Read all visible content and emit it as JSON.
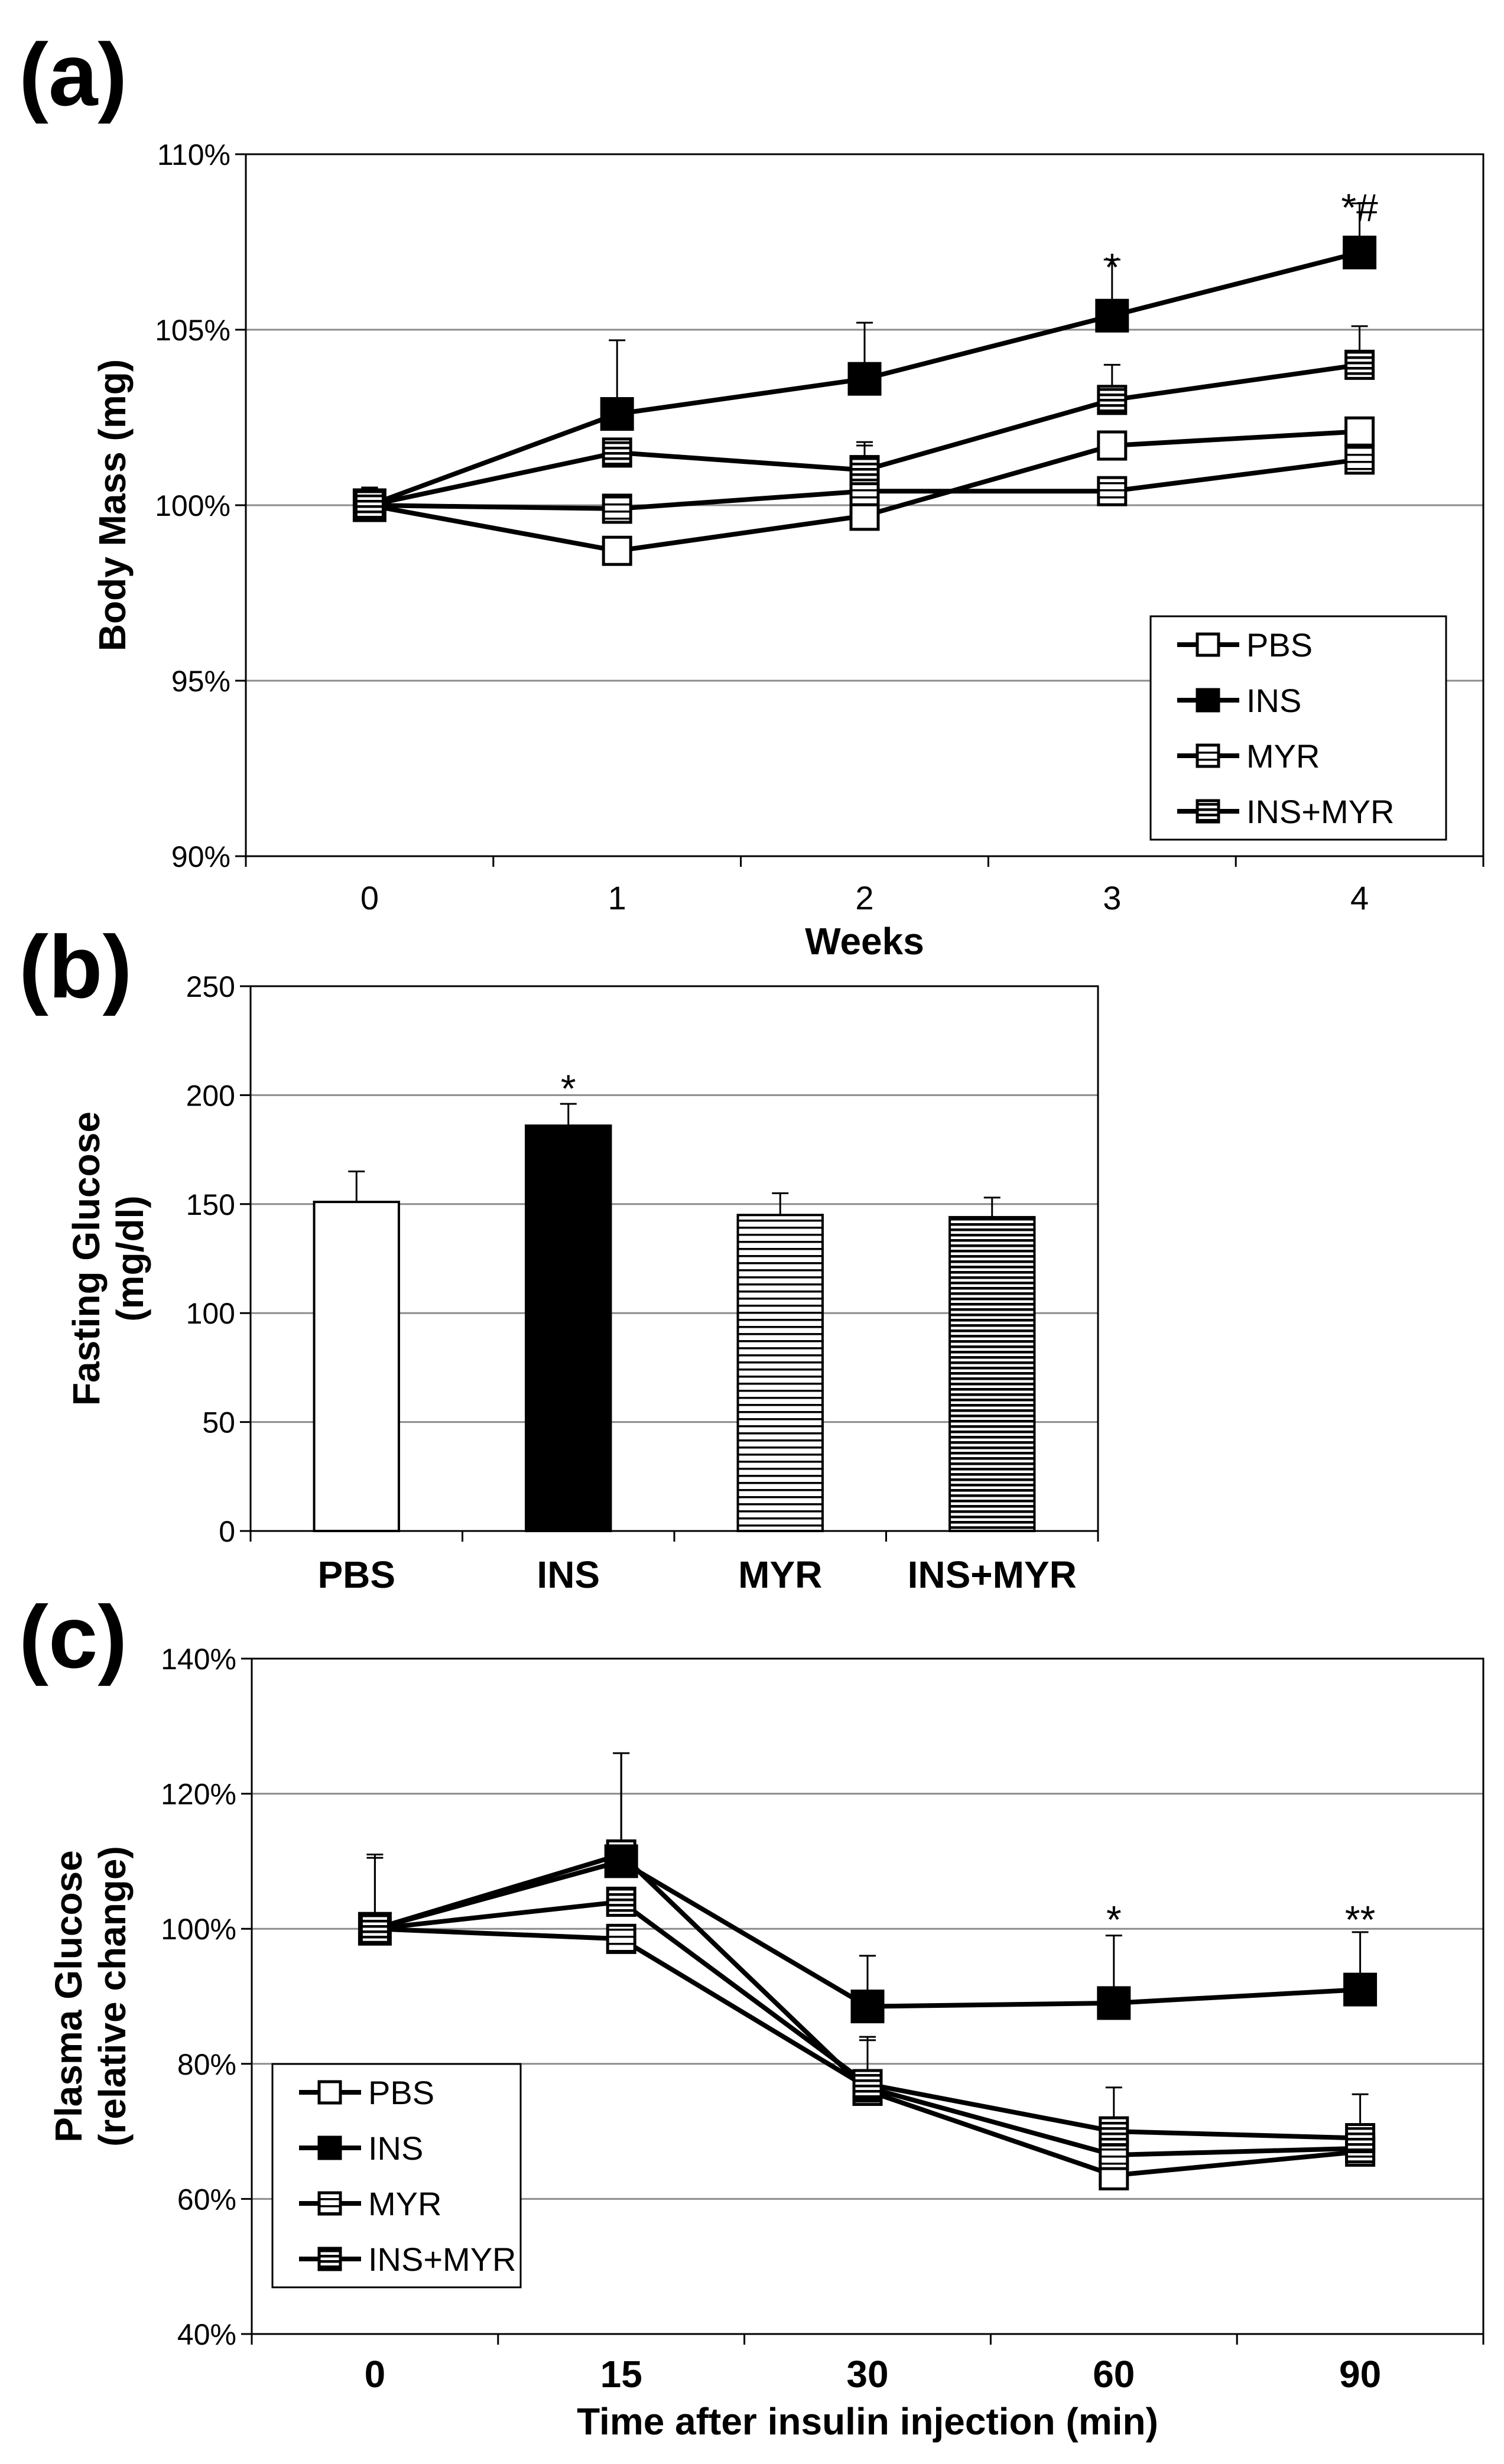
{
  "chart_data": [
    {
      "panel": "(a)",
      "type": "line",
      "xlabel": "Weeks",
      "ylabel": "Body Mass (mg)",
      "categories": [
        "0",
        "1",
        "2",
        "3",
        "4"
      ],
      "ylim": [
        90,
        110
      ],
      "yticks": [
        "90%",
        "95%",
        "100%",
        "105%",
        "110%"
      ],
      "grid": true,
      "legend_position": "bottom-right",
      "series": [
        {
          "name": "PBS",
          "marker": "open",
          "values": [
            100,
            98.7,
            99.7,
            101.7,
            102.1
          ],
          "errors": [
            0.5,
            0,
            0,
            0,
            0
          ]
        },
        {
          "name": "INS",
          "marker": "filled",
          "values": [
            100,
            102.6,
            103.6,
            105.4,
            107.2
          ],
          "errors": [
            0.5,
            2.1,
            1.6,
            1.6,
            1.4
          ]
        },
        {
          "name": "MYR",
          "marker": "hlines-sparse",
          "values": [
            100,
            99.9,
            100.4,
            100.4,
            101.3
          ],
          "errors": [
            0.5,
            0,
            1.3,
            0,
            0
          ]
        },
        {
          "name": "INS+MYR",
          "marker": "hlines-dense",
          "values": [
            100,
            101.5,
            101.0,
            103.0,
            104.0
          ],
          "errors": [
            0.5,
            0,
            0.8,
            1.0,
            1.1
          ]
        }
      ],
      "annotations": [
        {
          "category": "3",
          "text": "*",
          "y": 106.9
        },
        {
          "category": "4",
          "text": "*#",
          "y": 108.6
        }
      ]
    },
    {
      "panel": "(b)",
      "type": "bar",
      "xlabel": "",
      "ylabel_lines": [
        "Fasting Glucose",
        "(mg/dl)"
      ],
      "categories": [
        "PBS",
        "INS",
        "MYR",
        "INS+MYR"
      ],
      "values": [
        151,
        186,
        145,
        144
      ],
      "errors": [
        14,
        10,
        10,
        9
      ],
      "fills": [
        "open",
        "filled",
        "hlines-sparse",
        "hlines-dense"
      ],
      "ylim": [
        0,
        250
      ],
      "yticks": [
        "0",
        "50",
        "100",
        "150",
        "200",
        "250"
      ],
      "grid": true,
      "annotations": [
        {
          "category": "INS",
          "text": "*",
          "y": 205
        }
      ]
    },
    {
      "panel": "(c)",
      "type": "line",
      "xlabel": "Time after insulin injection (min)",
      "ylabel_lines": [
        "Plasma Glucose",
        "(relative change)"
      ],
      "categories": [
        "0",
        "15",
        "30",
        "60",
        "90"
      ],
      "ylim": [
        40,
        140
      ],
      "yticks": [
        "40%",
        "60%",
        "80%",
        "100%",
        "120%",
        "140%"
      ],
      "grid": true,
      "legend_position": "bottom-left",
      "series": [
        {
          "name": "PBS",
          "marker": "open",
          "values": [
            100,
            111,
            76,
            63.5,
            67
          ],
          "errors": [
            10.5,
            15,
            8,
            0,
            0
          ]
        },
        {
          "name": "INS",
          "marker": "filled",
          "values": [
            100,
            110,
            88.5,
            89,
            91
          ],
          "errors": [
            11,
            16,
            7.5,
            10,
            8.5
          ]
        },
        {
          "name": "MYR",
          "marker": "hlines-sparse",
          "values": [
            100,
            98.5,
            76.5,
            66.5,
            67.5
          ],
          "errors": [
            0,
            0,
            0,
            0,
            0
          ]
        },
        {
          "name": "INS+MYR",
          "marker": "hlines-dense",
          "values": [
            100,
            104,
            77,
            70,
            69
          ],
          "errors": [
            0,
            0,
            6.5,
            6.5,
            6.5
          ]
        }
      ],
      "annotations": [
        {
          "category": "60",
          "text": "*",
          "y": 102
        },
        {
          "category": "90",
          "text": "**",
          "y": 102
        }
      ]
    }
  ],
  "colors": {
    "line": "#000000",
    "grid": "#8c8c8c",
    "open_fill": "#ffffff",
    "filled_fill": "#000000"
  },
  "icons": {
    "open": "open-square-marker",
    "filled": "filled-square-marker",
    "hlines-sparse": "striped-square-marker",
    "hlines-dense": "dense-striped-square-marker"
  }
}
